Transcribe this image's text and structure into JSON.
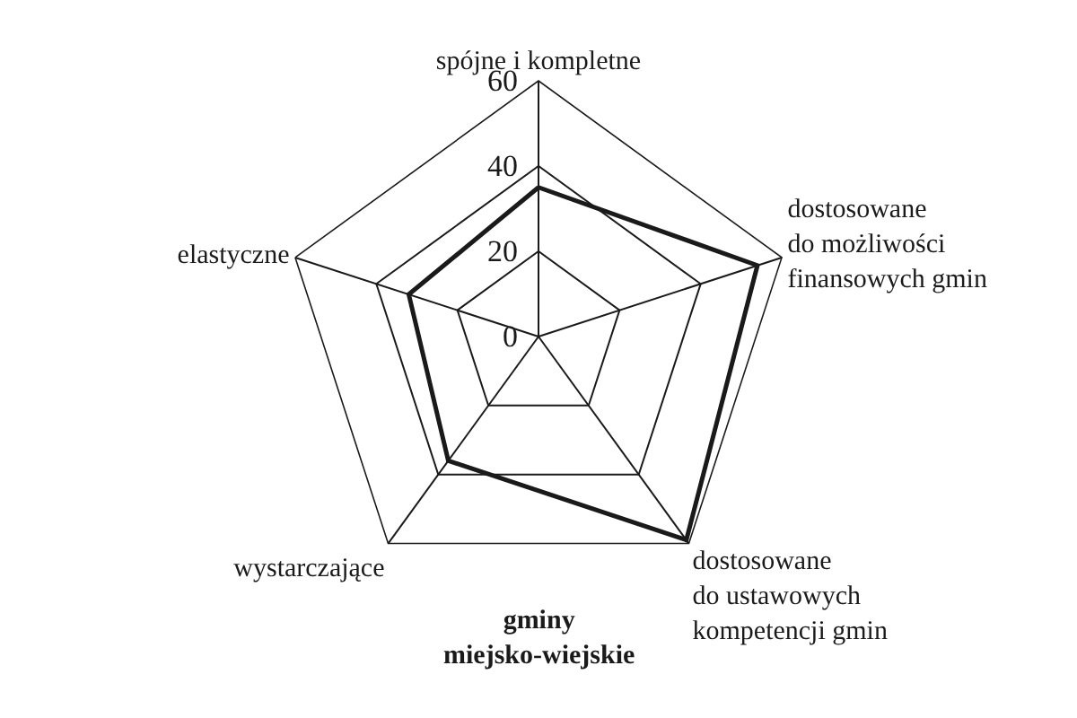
{
  "chart_data": {
    "type": "radar",
    "title": "gminy\nmiejsko-wiejskie",
    "categories": [
      "spójne i kompletne",
      "dostosowane\ndo możliwości\nfinansowych gmin",
      "dostosowane\ndo ustawowych\nkompetencji gmin",
      "wystarczające",
      "elastyczne"
    ],
    "series": [
      {
        "color": "#1a1a1a",
        "values": [
          35,
          54,
          59,
          36,
          32
        ]
      }
    ],
    "ylim": [
      0,
      60
    ],
    "yticks": [
      0,
      20,
      40,
      60
    ],
    "grid": true,
    "marker": "none",
    "line_style": "solid",
    "legend": false
  }
}
